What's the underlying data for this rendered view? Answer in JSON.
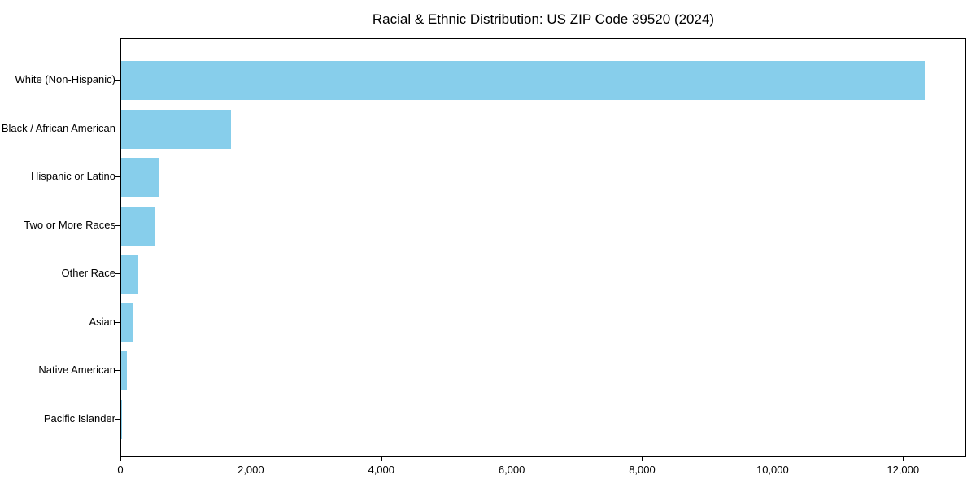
{
  "figure": {
    "background": "#ffffff"
  },
  "chart_data": {
    "type": "bar",
    "orientation": "horizontal",
    "title": "Racial & Ethnic Distribution: US ZIP Code 39520 (2024)",
    "xlabel": "",
    "ylabel": "",
    "categories": [
      "White (Non-Hispanic)",
      "Black / African American",
      "Hispanic or Latino",
      "Two or More Races",
      "Other Race",
      "Asian",
      "Native American",
      "Pacific Islander"
    ],
    "values": [
      12320,
      1680,
      580,
      510,
      265,
      170,
      90,
      5
    ],
    "xlim": [
      0,
      12970
    ],
    "x_ticks": [
      0,
      2000,
      4000,
      6000,
      8000,
      10000,
      12000
    ],
    "x_tick_labels": [
      "0",
      "2,000",
      "4,000",
      "6,000",
      "8,000",
      "10,000",
      "12,000"
    ],
    "bar_color": "#87ceeb",
    "axis_color": "#000000",
    "grid": false,
    "legend": null
  }
}
